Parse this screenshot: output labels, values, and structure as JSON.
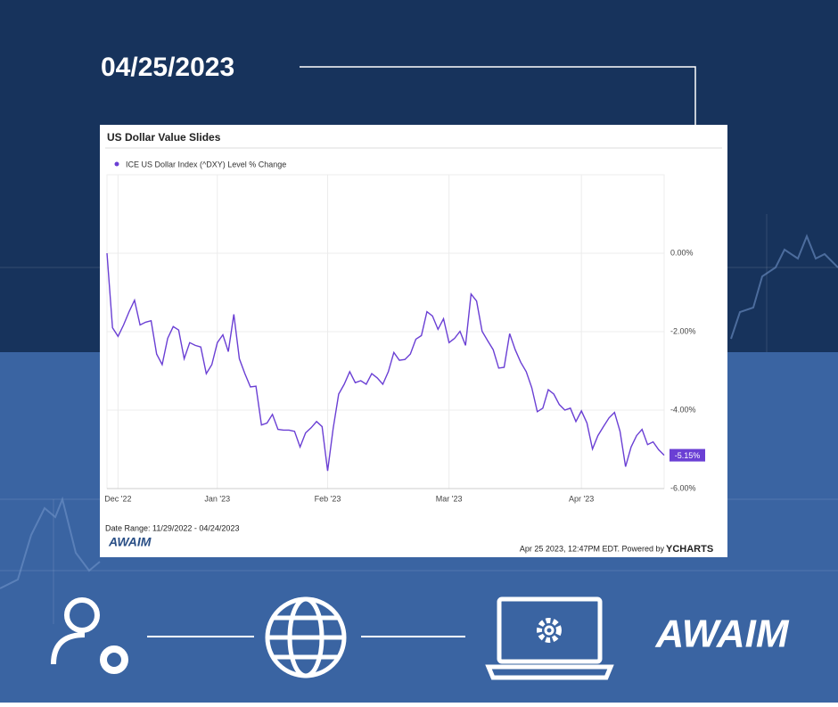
{
  "header": {
    "date": "04/25/2023"
  },
  "chart_data": {
    "type": "line",
    "title": "US Dollar Value Slides",
    "categories": [
      null,
      null,
      "Dec '22",
      null,
      null,
      null,
      null,
      null,
      null,
      null,
      null,
      null,
      null,
      null,
      null,
      null,
      null,
      null,
      null,
      null,
      "Jan '23",
      null,
      null,
      null,
      null,
      null,
      null,
      null,
      null,
      null,
      null,
      null,
      null,
      null,
      null,
      null,
      null,
      null,
      null,
      null,
      "Feb '23",
      null,
      null,
      null,
      null,
      null,
      null,
      null,
      null,
      null,
      null,
      null,
      null,
      null,
      null,
      null,
      null,
      null,
      null,
      null,
      null,
      null,
      "Mar '23",
      null,
      null,
      null,
      null,
      null,
      null,
      null,
      null,
      null,
      null,
      null,
      null,
      null,
      null,
      null,
      null,
      null,
      null,
      null,
      null,
      null,
      null,
      null,
      "Apr '23",
      null,
      null,
      null,
      null,
      null,
      null,
      null,
      null,
      null,
      null,
      null,
      null,
      null,
      null,
      null
    ],
    "series": [
      {
        "name": "ICE US Dollar Index (^DXY) Level % Change",
        "color": "#6a3fd4",
        "values": [
          0,
          -1.9,
          -2.12,
          -1.83,
          -1.49,
          -1.2,
          -1.83,
          -1.76,
          -1.72,
          -2.57,
          -2.84,
          -2.17,
          -1.87,
          -1.96,
          -2.69,
          -2.28,
          -2.35,
          -2.39,
          -3.07,
          -2.84,
          -2.28,
          -2.08,
          -2.51,
          -1.56,
          -2.69,
          -3.07,
          -3.41,
          -3.39,
          -4.38,
          -4.33,
          -4.11,
          -4.49,
          -4.51,
          -4.51,
          -4.54,
          -4.94,
          -4.58,
          -4.45,
          -4.29,
          -4.42,
          -5.55,
          -4.47,
          -3.59,
          -3.34,
          -3.02,
          -3.3,
          -3.25,
          -3.34,
          -3.07,
          -3.18,
          -3.34,
          -3.02,
          -2.53,
          -2.73,
          -2.71,
          -2.57,
          -2.19,
          -2.1,
          -1.49,
          -1.6,
          -1.94,
          -1.67,
          -2.28,
          -2.17,
          -1.99,
          -2.35,
          -1.04,
          -1.22,
          -1.99,
          -2.23,
          -2.46,
          -2.93,
          -2.91,
          -2.05,
          -2.46,
          -2.78,
          -3.02,
          -3.43,
          -4.04,
          -3.95,
          -3.48,
          -3.59,
          -3.86,
          -4.0,
          -3.95,
          -4.29,
          -4.02,
          -4.33,
          -4.99,
          -4.65,
          -4.42,
          -4.2,
          -4.06,
          -4.54,
          -5.44,
          -4.94,
          -4.65,
          -4.49,
          -4.88,
          -4.81,
          -5.01,
          -5.15
        ],
        "value_labels": [
          null,
          null,
          null,
          null,
          null,
          null,
          null,
          null,
          null,
          null,
          null,
          null,
          null,
          null,
          null,
          null,
          null,
          null,
          null,
          null,
          null,
          null,
          null,
          null,
          null,
          null,
          null,
          null,
          null,
          null,
          null,
          null,
          null,
          null,
          null,
          null,
          null,
          null,
          null,
          null,
          null,
          null,
          null,
          null,
          null,
          null,
          null,
          null,
          null,
          null,
          null,
          null,
          null,
          null,
          null,
          null,
          null,
          null,
          null,
          null,
          null,
          null,
          null,
          null,
          null,
          null,
          null,
          null,
          null,
          null,
          null,
          null,
          null,
          null,
          null,
          null,
          null,
          null,
          null,
          null,
          null,
          null,
          null,
          null,
          null,
          null,
          null,
          null,
          null,
          null,
          null,
          null,
          null,
          null,
          null,
          null,
          null,
          null,
          null,
          null,
          null,
          "-5.15%"
        ]
      }
    ],
    "ylim": [
      -6,
      2
    ],
    "yticks": [
      {
        "value": 0,
        "label": "0.00%"
      },
      {
        "value": -2,
        "label": "-2.00%"
      },
      {
        "value": -4,
        "label": "-4.00%"
      },
      {
        "value": -6,
        "label": "-6.00%"
      }
    ],
    "grid": true,
    "date_range": "Date Range: 11/29/2022 - 04/24/2023",
    "source_logo": "AWAIM",
    "timestamp": "Apr 25 2023, 12:47PM EDT. Powered by",
    "powered_by": "YCHARTS"
  },
  "brand_logo": "AWAIM"
}
